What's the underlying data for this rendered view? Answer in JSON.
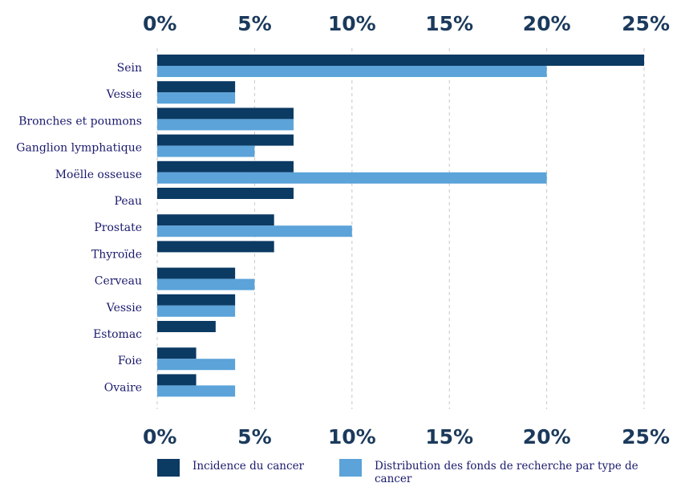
{
  "chart_data": {
    "type": "bar",
    "orientation": "horizontal",
    "categories": [
      "Sein",
      "Vessie",
      "Bronches et poumons",
      "Ganglion lymphatique",
      "Moëlle osseuse",
      "Peau",
      "Prostate",
      "Thyroïde",
      "Cerveau",
      "Vessie",
      "Estomac",
      "Foie",
      "Ovaire"
    ],
    "series": [
      {
        "name": "Incidence du cancer",
        "color": "#0b3a63",
        "values": [
          25,
          4,
          7,
          7,
          7,
          7,
          6,
          6,
          4,
          4,
          3,
          2,
          2
        ]
      },
      {
        "name": "Distribution des fonds de recherche par type de cancer",
        "color": "#5ba3d9",
        "values": [
          20,
          4,
          7,
          5,
          20,
          0,
          10,
          0,
          5,
          4,
          0,
          4,
          4
        ]
      }
    ],
    "xlim": [
      0,
      25
    ],
    "xticks": [
      "0%",
      "5%",
      "10%",
      "15%",
      "20%",
      "25%"
    ],
    "xtick_values": [
      0,
      5,
      10,
      15,
      20,
      25
    ],
    "axis_labels_position": "top-and-bottom",
    "grid": true,
    "legend_position": "bottom",
    "legend_lines": [
      [
        "Incidence du cancer"
      ],
      [
        "Distribution des fonds de recherche par type de",
        "cancer"
      ]
    ]
  }
}
